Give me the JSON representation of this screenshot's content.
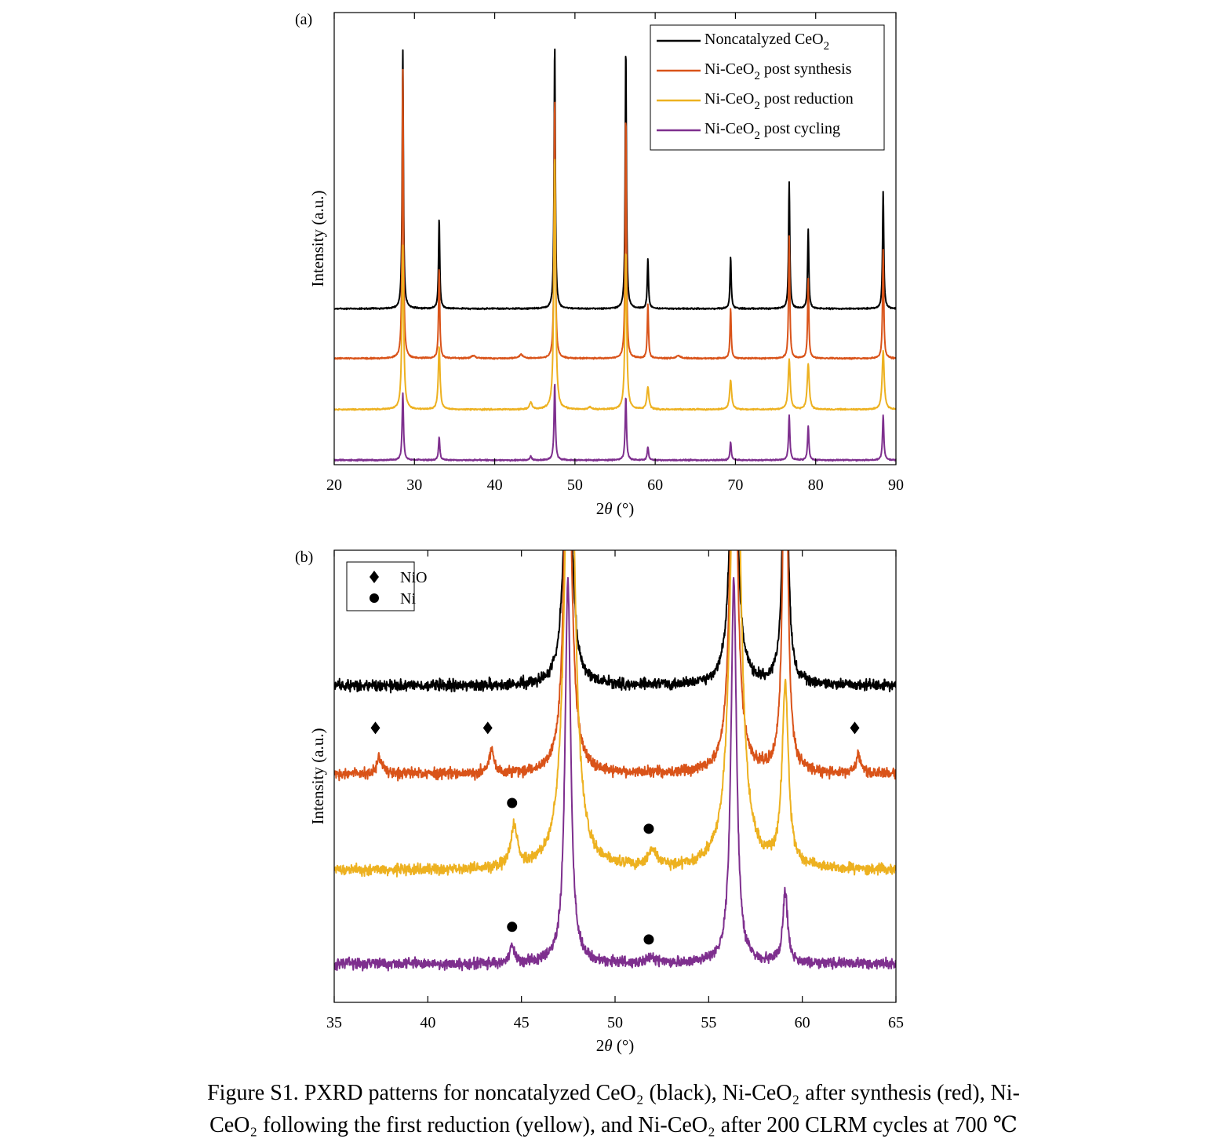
{
  "chart_data": [
    {
      "type": "line",
      "panel_label": "(a)",
      "xlabel_main": "2",
      "xlabel_theta": "θ",
      "xlabel_unit": " (°)",
      "ylabel": "Intensity (a.u.)",
      "xlim": [
        20,
        90
      ],
      "xticks": [
        20,
        30,
        40,
        50,
        60,
        70,
        80,
        90
      ],
      "yticks": "none",
      "grid": false,
      "legend_position": "top-right",
      "series": [
        {
          "name_parts": [
            "Noncatalyzed CeO",
            "2",
            ""
          ],
          "color": "#000000",
          "baseline": 0.655,
          "noise": 0.0015,
          "peaks": [
            {
              "x": 28.55,
              "h": 0.575,
              "w": 0.09
            },
            {
              "x": 33.08,
              "h": 0.2,
              "w": 0.09
            },
            {
              "x": 47.48,
              "h": 0.59,
              "w": 0.09
            },
            {
              "x": 56.34,
              "h": 0.58,
              "w": 0.09
            },
            {
              "x": 59.09,
              "h": 0.11,
              "w": 0.09
            },
            {
              "x": 69.4,
              "h": 0.115,
              "w": 0.09
            },
            {
              "x": 76.7,
              "h": 0.28,
              "w": 0.09
            },
            {
              "x": 79.07,
              "h": 0.175,
              "w": 0.09
            },
            {
              "x": 88.41,
              "h": 0.26,
              "w": 0.09
            }
          ]
        },
        {
          "name_parts": [
            "Ni-CeO",
            "2",
            " post synthesis"
          ],
          "color": "#d95319",
          "baseline": 0.765,
          "noise": 0.0015,
          "peaks": [
            {
              "x": 28.55,
              "h": 0.64,
              "w": 0.09
            },
            {
              "x": 33.08,
              "h": 0.2,
              "w": 0.09
            },
            {
              "x": 37.3,
              "h": 0.006,
              "w": 0.3
            },
            {
              "x": 43.3,
              "h": 0.008,
              "w": 0.3
            },
            {
              "x": 47.48,
              "h": 0.58,
              "w": 0.09
            },
            {
              "x": 56.34,
              "h": 0.54,
              "w": 0.09
            },
            {
              "x": 59.09,
              "h": 0.12,
              "w": 0.09
            },
            {
              "x": 62.9,
              "h": 0.006,
              "w": 0.3
            },
            {
              "x": 69.4,
              "h": 0.11,
              "w": 0.09
            },
            {
              "x": 76.7,
              "h": 0.27,
              "w": 0.09
            },
            {
              "x": 79.07,
              "h": 0.175,
              "w": 0.09
            },
            {
              "x": 88.41,
              "h": 0.24,
              "w": 0.09
            }
          ]
        },
        {
          "name_parts": [
            "Ni-CeO",
            "2",
            " post reduction"
          ],
          "color": "#edb120",
          "baseline": 0.878,
          "noise": 0.0015,
          "peaks": [
            {
              "x": 28.55,
              "h": 0.365,
              "w": 0.13
            },
            {
              "x": 33.08,
              "h": 0.14,
              "w": 0.13
            },
            {
              "x": 44.5,
              "h": 0.015,
              "w": 0.2
            },
            {
              "x": 47.48,
              "h": 0.56,
              "w": 0.13
            },
            {
              "x": 51.9,
              "h": 0.005,
              "w": 0.2
            },
            {
              "x": 56.34,
              "h": 0.35,
              "w": 0.13
            },
            {
              "x": 59.09,
              "h": 0.05,
              "w": 0.15
            },
            {
              "x": 69.4,
              "h": 0.065,
              "w": 0.15
            },
            {
              "x": 76.7,
              "h": 0.11,
              "w": 0.15
            },
            {
              "x": 79.07,
              "h": 0.1,
              "w": 0.15
            },
            {
              "x": 88.41,
              "h": 0.13,
              "w": 0.15
            }
          ]
        },
        {
          "name_parts": [
            "Ni-CeO",
            "2",
            " post cycling"
          ],
          "color": "#7e2f8e",
          "baseline": 0.99,
          "noise": 0.0015,
          "peaks": [
            {
              "x": 28.55,
              "h": 0.15,
              "w": 0.1
            },
            {
              "x": 33.08,
              "h": 0.05,
              "w": 0.1
            },
            {
              "x": 44.5,
              "h": 0.008,
              "w": 0.15
            },
            {
              "x": 47.48,
              "h": 0.17,
              "w": 0.1
            },
            {
              "x": 56.34,
              "h": 0.14,
              "w": 0.1
            },
            {
              "x": 59.09,
              "h": 0.03,
              "w": 0.1
            },
            {
              "x": 69.4,
              "h": 0.04,
              "w": 0.1
            },
            {
              "x": 76.7,
              "h": 0.1,
              "w": 0.1
            },
            {
              "x": 79.07,
              "h": 0.075,
              "w": 0.1
            },
            {
              "x": 88.41,
              "h": 0.1,
              "w": 0.1
            }
          ]
        }
      ]
    },
    {
      "type": "line",
      "panel_label": "(b)",
      "xlabel_main": "2",
      "xlabel_theta": "θ",
      "xlabel_unit": " (°)",
      "ylabel": "Intensity (a.u.)",
      "xlim": [
        35,
        65
      ],
      "xticks": [
        35,
        40,
        45,
        50,
        55,
        60,
        65
      ],
      "yticks": "none",
      "grid": false,
      "legend_position": "top-left",
      "legend": [
        {
          "label": "NiO",
          "marker": "diamond"
        },
        {
          "label": "Ni",
          "marker": "circle"
        }
      ],
      "series": [
        {
          "name": "Noncatalyzed CeO2",
          "color": "#000000",
          "baseline": 0.3,
          "noise": 0.012,
          "peaks": [
            {
              "x": 47.48,
              "h": 0.7,
              "w": 0.22
            },
            {
              "x": 56.34,
              "h": 0.7,
              "w": 0.22
            },
            {
              "x": 59.09,
              "h": 0.7,
              "w": 0.15
            }
          ]
        },
        {
          "name": "Ni-CeO2 post synthesis",
          "color": "#d95319",
          "baseline": 0.495,
          "noise": 0.012,
          "peaks": [
            {
              "x": 37.4,
              "h": 0.035,
              "w": 0.15
            },
            {
              "x": 43.4,
              "h": 0.055,
              "w": 0.15
            },
            {
              "x": 47.48,
              "h": 0.9,
              "w": 0.22
            },
            {
              "x": 56.34,
              "h": 0.9,
              "w": 0.22
            },
            {
              "x": 59.09,
              "h": 0.9,
              "w": 0.15
            },
            {
              "x": 63.0,
              "h": 0.04,
              "w": 0.15
            }
          ]
        },
        {
          "name": "Ni-CeO2 post reduction",
          "color": "#edb120",
          "baseline": 0.708,
          "noise": 0.012,
          "peaks": [
            {
              "x": 44.6,
              "h": 0.09,
              "w": 0.2
            },
            {
              "x": 47.58,
              "h": 1.2,
              "w": 0.3
            },
            {
              "x": 52.0,
              "h": 0.035,
              "w": 0.3
            },
            {
              "x": 56.44,
              "h": 1.2,
              "w": 0.3
            },
            {
              "x": 59.09,
              "h": 0.4,
              "w": 0.2
            }
          ]
        },
        {
          "name": "Ni-CeO2 post cycling",
          "color": "#7e2f8e",
          "baseline": 0.915,
          "noise": 0.012,
          "peaks": [
            {
              "x": 44.5,
              "h": 0.04,
              "w": 0.15
            },
            {
              "x": 47.48,
              "h": 0.85,
              "w": 0.18
            },
            {
              "x": 52.0,
              "h": 0.012,
              "w": 0.3
            },
            {
              "x": 56.34,
              "h": 0.85,
              "w": 0.18
            },
            {
              "x": 59.09,
              "h": 0.16,
              "w": 0.15
            }
          ]
        }
      ],
      "markers": [
        {
          "type": "diamond",
          "x": 37.2,
          "y": 0.393
        },
        {
          "type": "diamond",
          "x": 43.2,
          "y": 0.393
        },
        {
          "type": "diamond",
          "x": 62.8,
          "y": 0.393
        },
        {
          "type": "circle",
          "x": 44.5,
          "y": 0.559
        },
        {
          "type": "circle",
          "x": 51.8,
          "y": 0.616
        },
        {
          "type": "circle",
          "x": 44.5,
          "y": 0.833
        },
        {
          "type": "circle",
          "x": 51.8,
          "y": 0.861
        }
      ]
    }
  ],
  "caption": {
    "line1": "Figure S1. PXRD patterns for noncatalyzed CeO₂ (black), Ni-CeO₂ after synthesis (red), Ni-",
    "line2": "CeO₂ following the first reduction (yellow), and Ni-CeO₂ after 200 CLRM cycles at 700 ℃"
  }
}
